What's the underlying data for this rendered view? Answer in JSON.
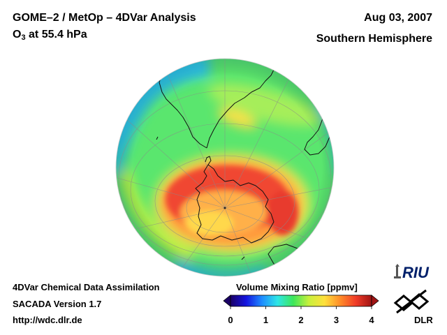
{
  "header": {
    "title": "GOME–2 / MetOp – 4DVar Analysis",
    "species": "O",
    "species_sub": "3",
    "level_text": " at 55.4 hPa",
    "date": "Aug 03, 2007",
    "region": "Southern Hemisphere"
  },
  "footer": {
    "line1": "4DVar Chemical Data Assimilation",
    "line2": "SACADA Version 1.7",
    "line3": "http://wdc.dlr.de"
  },
  "colorbar": {
    "title": "Volume Mixing Ratio [ppmv]",
    "min": 0,
    "max": 4,
    "ticks": [
      "0",
      "1",
      "2",
      "3",
      "4"
    ],
    "stops": [
      "#1a0066",
      "#1414e0",
      "#1e8cff",
      "#2ee6e6",
      "#3ce65a",
      "#c8f03c",
      "#ffe03c",
      "#ff8c28",
      "#f03c28",
      "#a01414"
    ]
  },
  "map": {
    "projection": "orthographic south polar",
    "field_colors": {
      "ocean_low": "#2ec8ee",
      "mid": "#5ae66e",
      "high": "#f0e650",
      "vortex_edge": "#ff9a3c",
      "vortex_core": "#f04632"
    }
  },
  "logos": {
    "riu": "RIU",
    "dlr": "DLR"
  }
}
